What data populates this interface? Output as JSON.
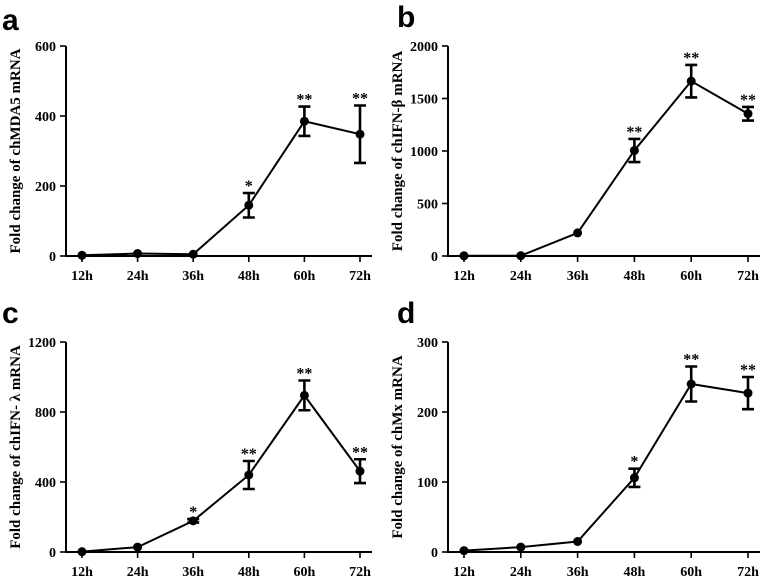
{
  "chart_data": [
    {
      "panel": "a",
      "type": "line",
      "ylabel": "Fold change of chMDA5 mRNA",
      "categories": [
        "12h",
        "24h",
        "36h",
        "48h",
        "60h",
        "72h"
      ],
      "values": [
        2,
        7,
        5,
        145,
        385,
        348
      ],
      "errors": [
        3,
        3,
        3,
        35,
        42,
        82
      ],
      "significance": [
        "",
        "",
        "",
        "*",
        "**",
        "**"
      ],
      "ylim": [
        0,
        600
      ],
      "yticks": [
        0,
        200,
        400,
        600
      ]
    },
    {
      "panel": "b",
      "type": "line",
      "ylabel": "Fold change of chIFN-β  mRNA",
      "categories": [
        "12h",
        "24h",
        "36h",
        "48h",
        "60h",
        "72h"
      ],
      "values": [
        2,
        3,
        220,
        1005,
        1665,
        1355
      ],
      "errors": [
        5,
        5,
        10,
        110,
        155,
        65
      ],
      "significance": [
        "",
        "",
        "",
        "**",
        "**",
        "**"
      ],
      "ylim": [
        0,
        2000
      ],
      "yticks": [
        0,
        500,
        1000,
        1500,
        2000
      ]
    },
    {
      "panel": "c",
      "type": "line",
      "ylabel": "Fold change of chIFN- λ  mRNA",
      "categories": [
        "12h",
        "24h",
        "36h",
        "48h",
        "60h",
        "72h"
      ],
      "values": [
        2,
        28,
        178,
        440,
        895,
        462
      ],
      "errors": [
        3,
        4,
        10,
        80,
        85,
        68
      ],
      "significance": [
        "",
        "",
        "*",
        "**",
        "**",
        "**"
      ],
      "ylim": [
        0,
        1200
      ],
      "yticks": [
        0,
        400,
        800,
        1200
      ]
    },
    {
      "panel": "d",
      "type": "line",
      "ylabel": "Fold change of chMx mRNA",
      "categories": [
        "12h",
        "24h",
        "36h",
        "48h",
        "60h",
        "72h"
      ],
      "values": [
        2,
        7,
        15,
        106,
        240,
        227
      ],
      "errors": [
        1,
        1,
        1,
        13,
        25,
        23
      ],
      "significance": [
        "",
        "",
        "",
        "*",
        "**",
        "**"
      ],
      "ylim": [
        0,
        300
      ],
      "yticks": [
        0,
        100,
        200,
        300
      ]
    }
  ]
}
